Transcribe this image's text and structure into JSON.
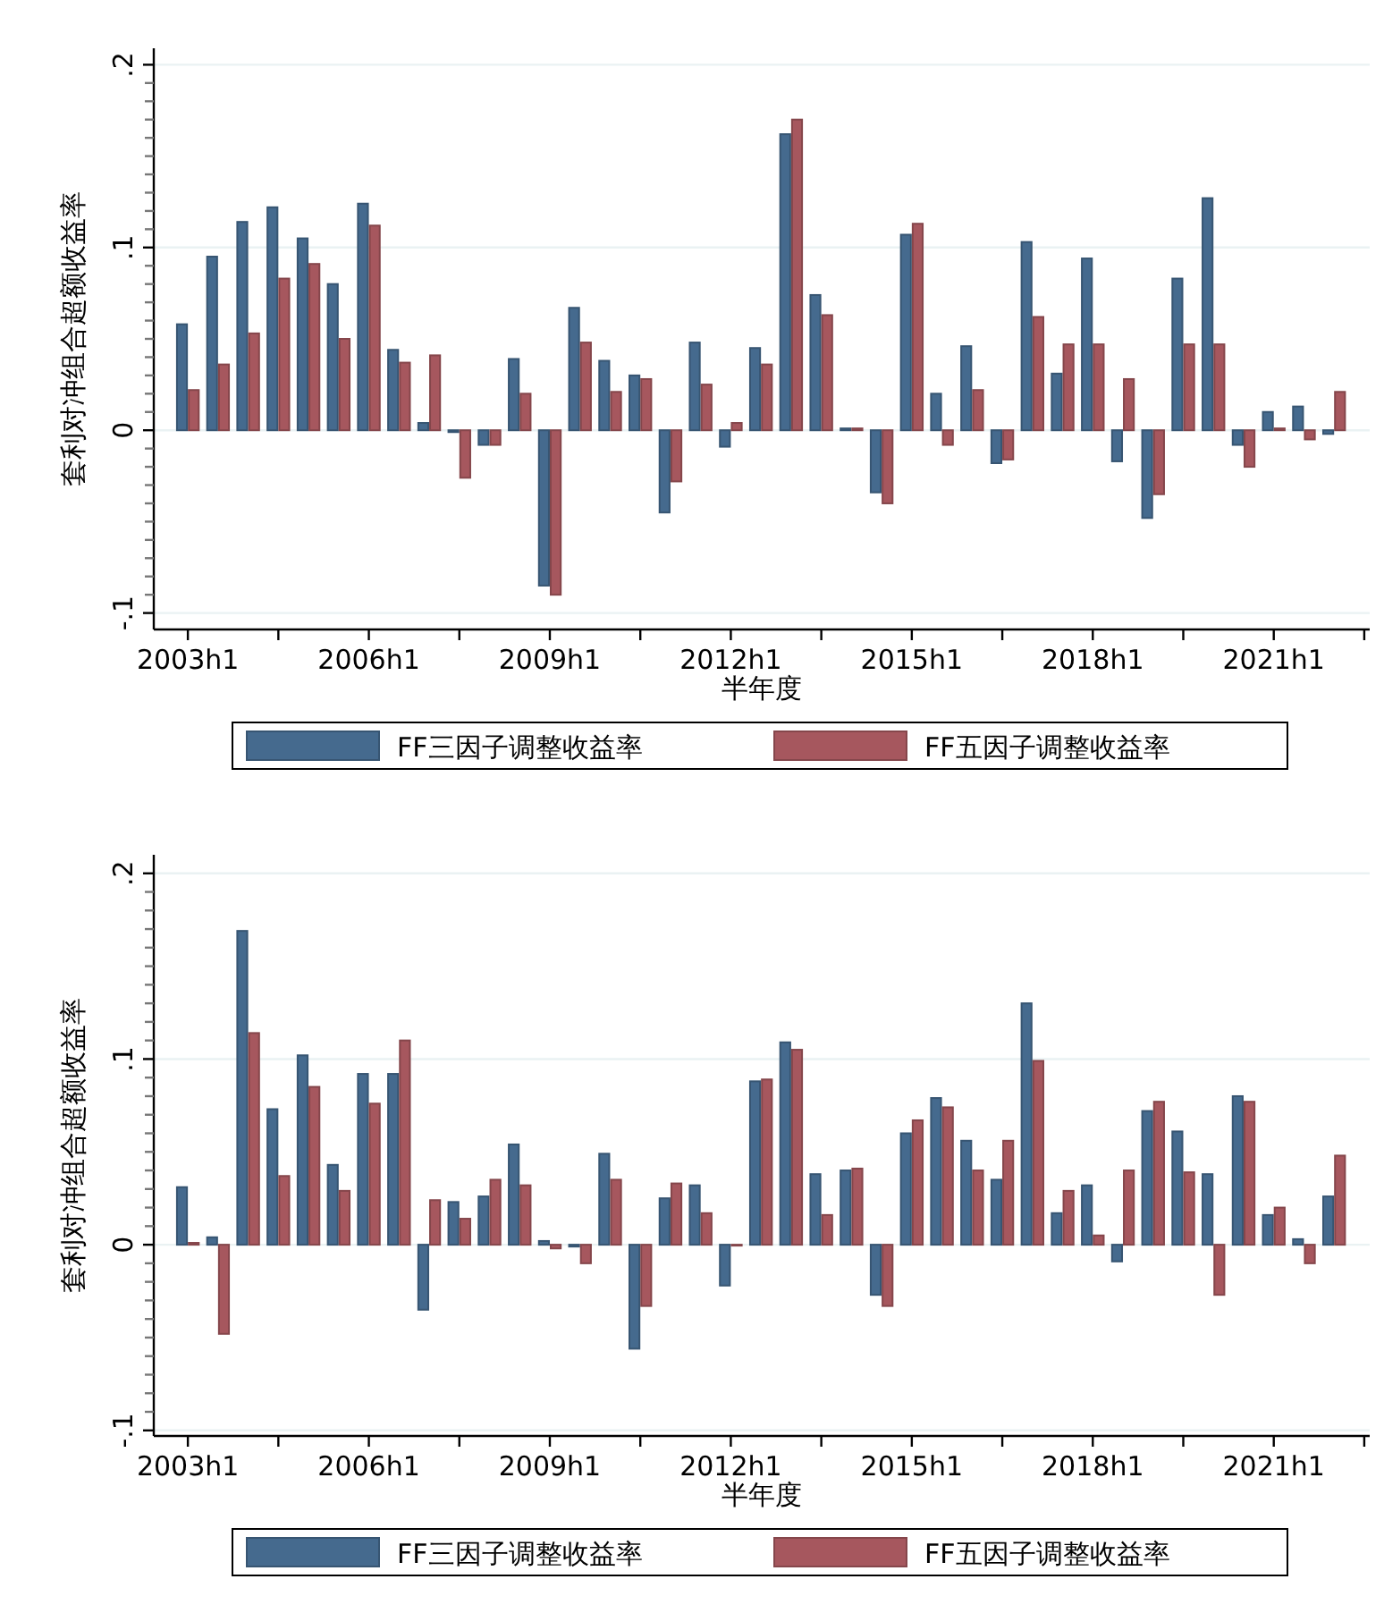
{
  "chart_data": [
    {
      "type": "bar",
      "xlabel": "半年度",
      "ylabel": "套利对冲组合超额收益率",
      "legend": "bottom",
      "grid": "y",
      "categories": [
        "2003h1",
        null,
        null,
        null,
        null,
        null,
        "2006h1",
        null,
        null,
        null,
        null,
        null,
        "2009h1",
        null,
        null,
        null,
        null,
        null,
        "2012h1",
        null,
        null,
        null,
        null,
        null,
        "2015h1",
        null,
        null,
        null,
        null,
        null,
        "2018h1",
        null,
        null,
        null,
        null,
        null,
        "2021h1",
        null,
        null
      ],
      "ylim": [
        -0.109,
        0.209
      ],
      "yticks": [
        {
          "value": -0.1,
          "label": "-.1"
        },
        {
          "value": -0.09,
          "label": null
        },
        {
          "value": -0.08,
          "label": null
        },
        {
          "value": -0.07,
          "label": null
        },
        {
          "value": -0.06,
          "label": null
        },
        {
          "value": -0.05,
          "label": null
        },
        {
          "value": -0.04,
          "label": null
        },
        {
          "value": -0.03,
          "label": null
        },
        {
          "value": -0.02,
          "label": null
        },
        {
          "value": -0.01,
          "label": null
        },
        {
          "value": 0,
          "label": "0"
        },
        {
          "value": 0.01,
          "label": null
        },
        {
          "value": 0.02,
          "label": null
        },
        {
          "value": 0.03,
          "label": null
        },
        {
          "value": 0.04,
          "label": null
        },
        {
          "value": 0.05,
          "label": null
        },
        {
          "value": 0.06,
          "label": null
        },
        {
          "value": 0.07,
          "label": null
        },
        {
          "value": 0.08,
          "label": null
        },
        {
          "value": 0.09,
          "label": null
        },
        {
          "value": 0.1,
          "label": ".1"
        },
        {
          "value": 0.11,
          "label": null
        },
        {
          "value": 0.12,
          "label": null
        },
        {
          "value": 0.13,
          "label": null
        },
        {
          "value": 0.14,
          "label": null
        },
        {
          "value": 0.15,
          "label": null
        },
        {
          "value": 0.16,
          "label": null
        },
        {
          "value": 0.17,
          "label": null
        },
        {
          "value": 0.18,
          "label": null
        },
        {
          "value": 0.19,
          "label": null
        },
        {
          "value": 0.2,
          "label": ".2"
        }
      ],
      "series": [
        {
          "name": "FF三因子调整收益率",
          "color": "#456a8e",
          "values": [
            0.058,
            0.095,
            0.114,
            0.122,
            0.105,
            0.08,
            0.124,
            0.044,
            0.004,
            -0.001,
            -0.008,
            0.039,
            -0.085,
            0.067,
            0.038,
            0.03,
            -0.045,
            0.048,
            -0.009,
            0.045,
            0.162,
            0.074,
            0.001,
            -0.034,
            0.107,
            0.02,
            0.046,
            -0.018,
            0.103,
            0.031,
            0.094,
            -0.017,
            -0.048,
            0.083,
            0.127,
            -0.008,
            0.01,
            0.013,
            -0.002
          ]
        },
        {
          "name": "FF五因子调整收益率",
          "color": "#a6575e",
          "values": [
            0.022,
            0.036,
            0.053,
            0.083,
            0.091,
            0.05,
            0.112,
            0.037,
            0.041,
            -0.026,
            -0.008,
            0.02,
            -0.09,
            0.048,
            0.021,
            0.028,
            -0.028,
            0.025,
            0.004,
            0.036,
            0.17,
            0.063,
            0.001,
            -0.04,
            0.113,
            -0.008,
            0.022,
            -0.016,
            0.062,
            0.047,
            0.047,
            0.028,
            -0.035,
            0.047,
            0.047,
            -0.02,
            0.001,
            -0.005,
            0.021
          ]
        }
      ]
    },
    {
      "type": "bar",
      "xlabel": "半年度",
      "ylabel": "套利对冲组合超额收益率",
      "legend": "bottom",
      "grid": "y",
      "categories": [
        "2003h1",
        null,
        null,
        null,
        null,
        null,
        "2006h1",
        null,
        null,
        null,
        null,
        null,
        "2009h1",
        null,
        null,
        null,
        null,
        null,
        "2012h1",
        null,
        null,
        null,
        null,
        null,
        "2015h1",
        null,
        null,
        null,
        null,
        null,
        "2018h1",
        null,
        null,
        null,
        null,
        null,
        "2021h1",
        null,
        null
      ],
      "ylim": [
        -0.103,
        0.21
      ],
      "yticks": [
        {
          "value": -0.1,
          "label": "-.1"
        },
        {
          "value": -0.09,
          "label": null
        },
        {
          "value": -0.08,
          "label": null
        },
        {
          "value": -0.07,
          "label": null
        },
        {
          "value": -0.06,
          "label": null
        },
        {
          "value": -0.05,
          "label": null
        },
        {
          "value": -0.04,
          "label": null
        },
        {
          "value": -0.03,
          "label": null
        },
        {
          "value": -0.02,
          "label": null
        },
        {
          "value": -0.01,
          "label": null
        },
        {
          "value": 0,
          "label": "0"
        },
        {
          "value": 0.01,
          "label": null
        },
        {
          "value": 0.02,
          "label": null
        },
        {
          "value": 0.03,
          "label": null
        },
        {
          "value": 0.04,
          "label": null
        },
        {
          "value": 0.05,
          "label": null
        },
        {
          "value": 0.06,
          "label": null
        },
        {
          "value": 0.07,
          "label": null
        },
        {
          "value": 0.08,
          "label": null
        },
        {
          "value": 0.09,
          "label": null
        },
        {
          "value": 0.1,
          "label": ".1"
        },
        {
          "value": 0.11,
          "label": null
        },
        {
          "value": 0.12,
          "label": null
        },
        {
          "value": 0.13,
          "label": null
        },
        {
          "value": 0.14,
          "label": null
        },
        {
          "value": 0.15,
          "label": null
        },
        {
          "value": 0.16,
          "label": null
        },
        {
          "value": 0.17,
          "label": null
        },
        {
          "value": 0.18,
          "label": null
        },
        {
          "value": 0.19,
          "label": null
        },
        {
          "value": 0.2,
          "label": ".2"
        }
      ],
      "series": [
        {
          "name": "FF三因子调整收益率",
          "color": "#456a8e",
          "values": [
            0.031,
            0.004,
            0.169,
            0.073,
            0.102,
            0.043,
            0.092,
            0.092,
            -0.035,
            0.023,
            0.026,
            0.054,
            0.002,
            -0.001,
            0.049,
            -0.056,
            0.025,
            0.032,
            -0.022,
            0.088,
            0.109,
            0.038,
            0.04,
            -0.027,
            0.06,
            0.079,
            0.056,
            0.035,
            0.13,
            0.017,
            0.032,
            -0.009,
            0.072,
            0.061,
            0.038,
            0.08,
            0.016,
            0.003,
            0.026
          ]
        },
        {
          "name": "FF五因子调整收益率",
          "color": "#a6575e",
          "values": [
            0.001,
            -0.048,
            0.114,
            0.037,
            0.085,
            0.029,
            0.076,
            0.11,
            0.024,
            0.014,
            0.035,
            0.032,
            -0.002,
            -0.01,
            0.035,
            -0.033,
            0.033,
            0.017,
            0,
            0.089,
            0.105,
            0.016,
            0.041,
            -0.033,
            0.067,
            0.074,
            0.04,
            0.056,
            0.099,
            0.029,
            0.005,
            0.04,
            0.077,
            0.039,
            -0.027,
            0.077,
            0.02,
            -0.01,
            0.048
          ]
        }
      ]
    }
  ]
}
